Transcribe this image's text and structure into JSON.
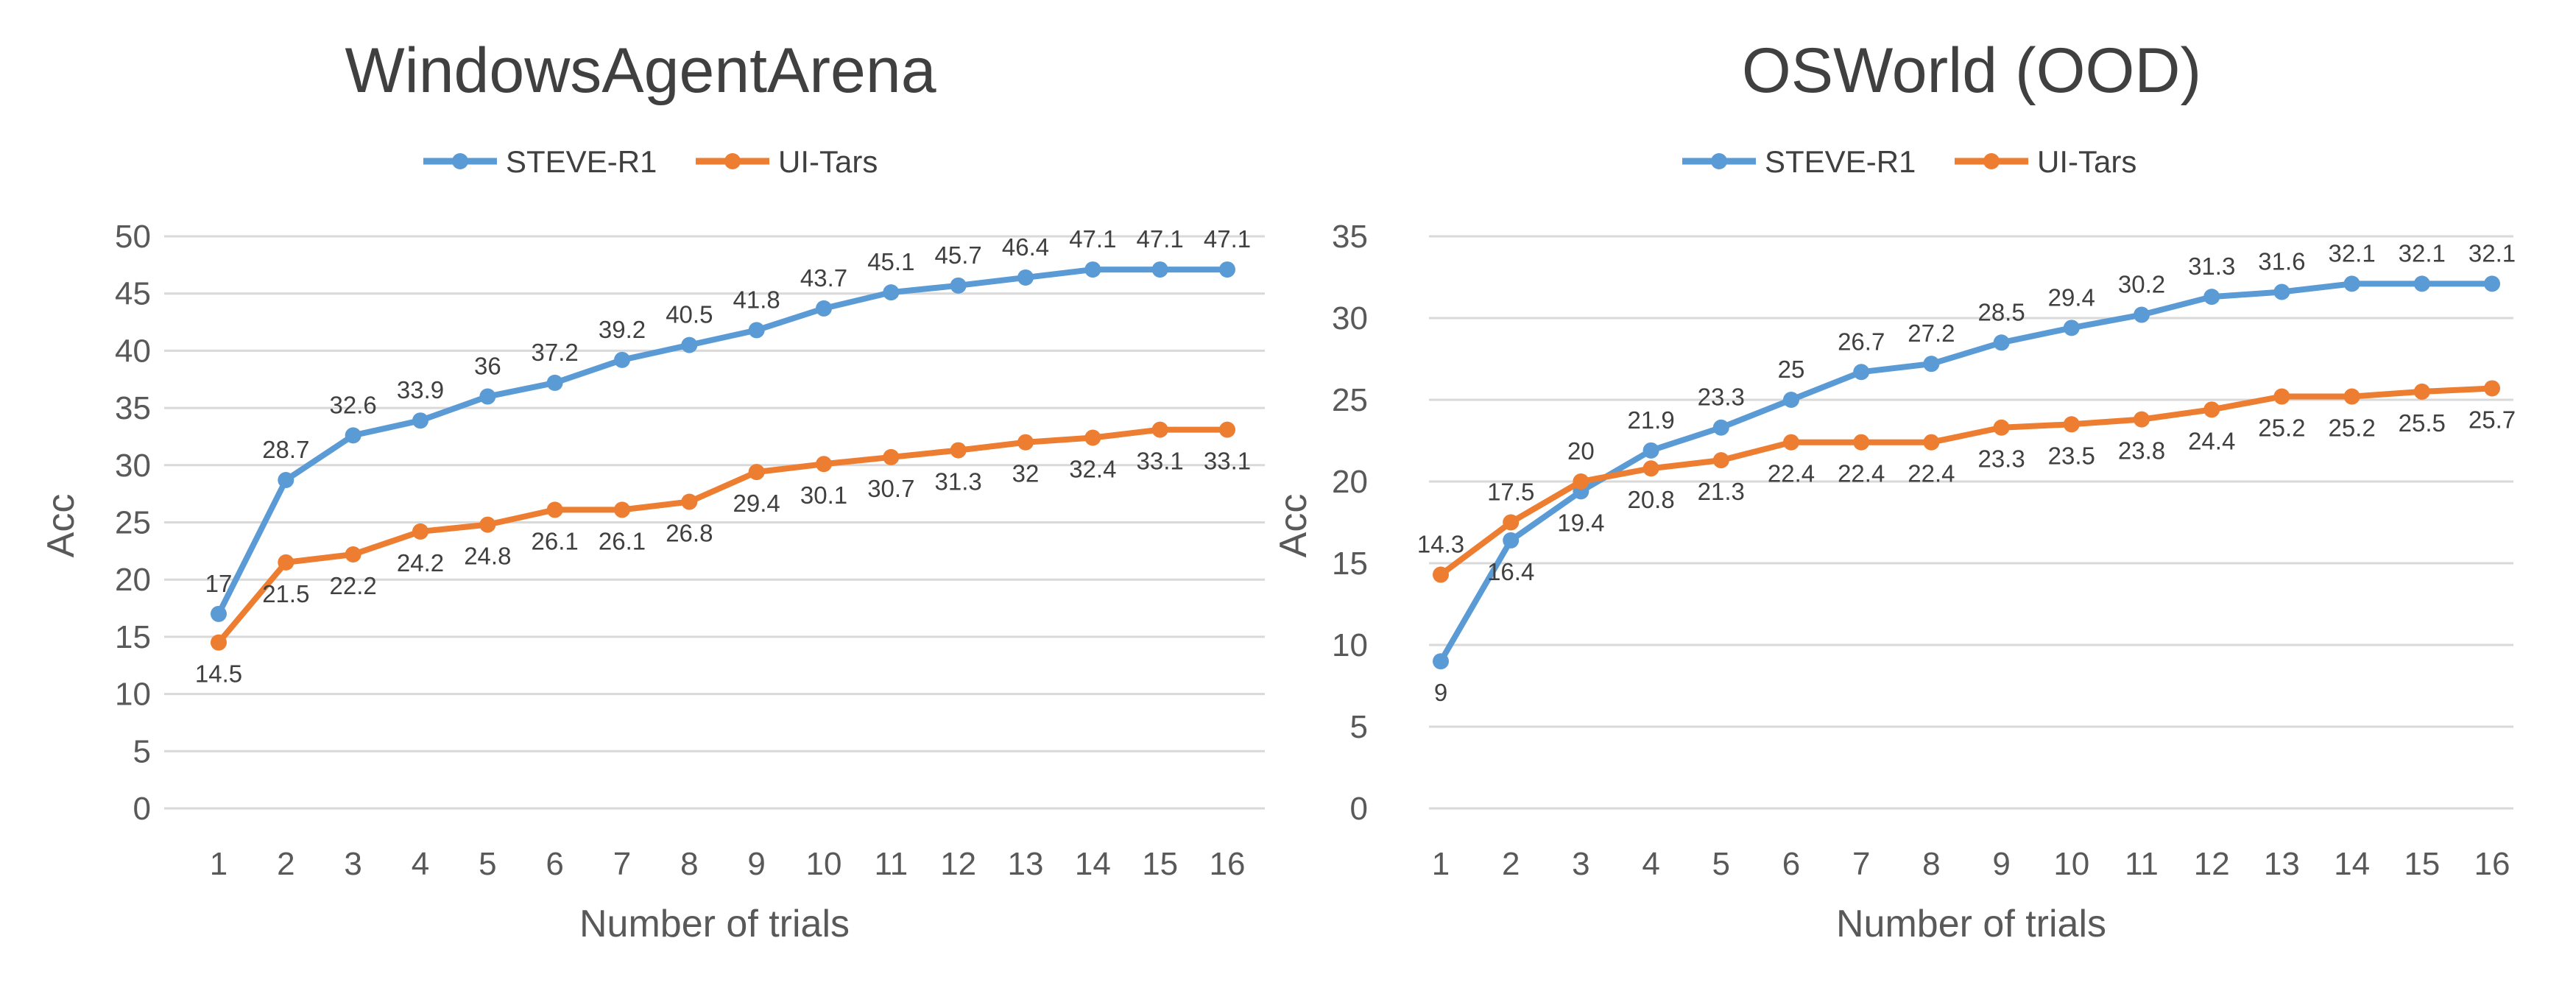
{
  "chart_data": [
    {
      "type": "line",
      "title": "WindowsAgentArena",
      "xlabel": "Number of trials",
      "ylabel": "Acc",
      "categories": [
        "1",
        "2",
        "3",
        "4",
        "5",
        "6",
        "7",
        "8",
        "9",
        "10",
        "11",
        "12",
        "13",
        "14",
        "15",
        "16"
      ],
      "ylim": [
        0,
        50
      ],
      "yticks": [
        0,
        5,
        10,
        15,
        20,
        25,
        30,
        35,
        40,
        45,
        50
      ],
      "grid": true,
      "legend_position": "top",
      "series": [
        {
          "name": "STEVE-R1",
          "color": "#5b9bd5",
          "values": [
            17,
            28.7,
            32.6,
            33.9,
            36,
            37.2,
            39.2,
            40.5,
            41.8,
            43.7,
            45.1,
            45.7,
            46.4,
            47.1,
            47.1,
            47.1
          ]
        },
        {
          "name": "UI-Tars",
          "color": "#ed7d31",
          "values": [
            14.5,
            21.5,
            22.2,
            24.2,
            24.8,
            26.1,
            26.1,
            26.8,
            29.4,
            30.1,
            30.7,
            31.3,
            32,
            32.4,
            33.1,
            33.1
          ]
        }
      ]
    },
    {
      "type": "line",
      "title": "OSWorld (OOD)",
      "xlabel": "Number of trials",
      "ylabel": "Acc",
      "categories": [
        "1",
        "2",
        "3",
        "4",
        "5",
        "6",
        "7",
        "8",
        "9",
        "10",
        "11",
        "12",
        "13",
        "14",
        "15",
        "16"
      ],
      "ylim": [
        0,
        35
      ],
      "yticks": [
        0,
        5,
        10,
        15,
        20,
        25,
        30,
        35
      ],
      "grid": true,
      "legend_position": "top",
      "series": [
        {
          "name": "STEVE-R1",
          "color": "#5b9bd5",
          "values": [
            9,
            16.4,
            19.4,
            21.9,
            23.3,
            25,
            26.7,
            27.2,
            28.5,
            29.4,
            30.2,
            31.3,
            31.6,
            32.1,
            32.1,
            32.1
          ]
        },
        {
          "name": "UI-Tars",
          "color": "#ed7d31",
          "values": [
            14.3,
            17.5,
            20,
            20.8,
            21.3,
            22.4,
            22.4,
            22.4,
            23.3,
            23.5,
            23.8,
            24.4,
            25.2,
            25.2,
            25.5,
            25.7
          ]
        }
      ]
    }
  ]
}
